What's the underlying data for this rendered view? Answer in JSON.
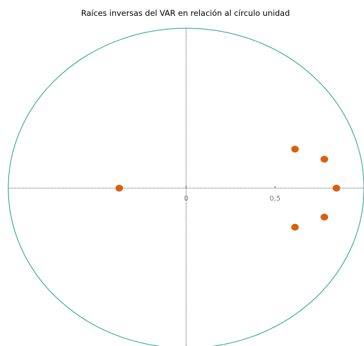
{
  "chart_data": {
    "type": "scatter",
    "title": "Raíces inversas del VAR en relación al círculo unidad",
    "xlabel": "",
    "ylabel": "",
    "xlim": [
      -1,
      1
    ],
    "ylim": [
      -1,
      1
    ],
    "x_ticks": [
      {
        "value": 0,
        "label": "0"
      },
      {
        "value": 0.5,
        "label": "0,5"
      }
    ],
    "grid": false,
    "reference": "unit circle",
    "series": [
      {
        "points": [
          {
            "x": -0.376,
            "y": 0.0
          },
          {
            "x": 0.612,
            "y": 0.244
          },
          {
            "x": 0.612,
            "y": -0.244
          },
          {
            "x": 0.777,
            "y": 0.181
          },
          {
            "x": 0.777,
            "y": -0.181
          },
          {
            "x": 0.845,
            "y": 0.0
          }
        ]
      }
    ],
    "colors": {
      "circle": "#1aa086",
      "points": "#d9600f",
      "axes": "#555555"
    }
  }
}
